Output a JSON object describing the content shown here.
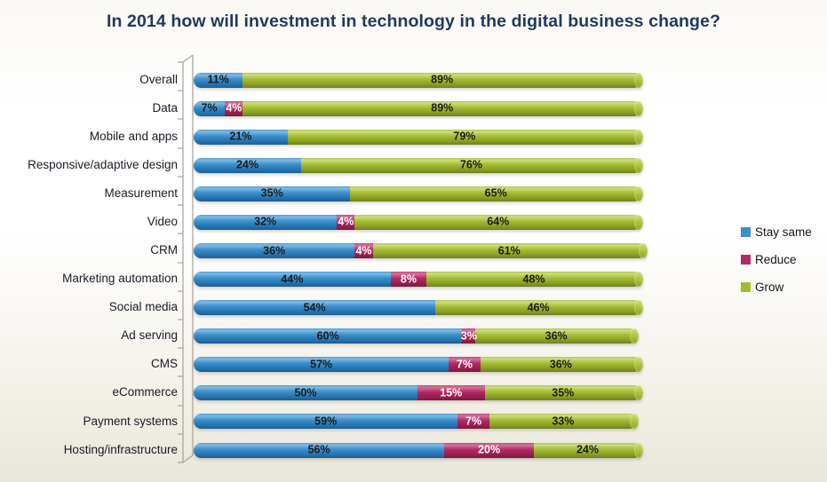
{
  "title": "In 2014 how will investment in technology in the digital business change?",
  "chart_data": {
    "type": "bar",
    "orientation": "horizontal",
    "stacked": true,
    "grid": false,
    "legend_position": "right",
    "xlim": [
      0,
      100
    ],
    "value_suffix": "%",
    "categories": [
      "Overall",
      "Data",
      "Mobile and apps",
      "Responsive/adaptive design",
      "Measurement",
      "Video",
      "CRM",
      "Marketing automation",
      "Social media",
      "Ad serving",
      "CMS",
      "eCommerce",
      "Payment systems",
      "Hosting/infrastructure"
    ],
    "series": [
      {
        "name": "Stay same",
        "color": "#3E8FCA",
        "values": [
          11,
          7,
          21,
          24,
          35,
          32,
          36,
          44,
          54,
          60,
          57,
          50,
          59,
          56
        ],
        "labels": [
          "11%",
          "7%",
          "21%",
          "24%",
          "35%",
          "32%",
          "36%",
          "44%",
          "54%",
          "60%",
          "57%",
          "50%",
          "59%",
          "56%"
        ]
      },
      {
        "name": "Reduce",
        "color": "#B22A62",
        "values": [
          0,
          4,
          0,
          0,
          0,
          4,
          4,
          8,
          0,
          3,
          7,
          15,
          7,
          20
        ],
        "labels": [
          "",
          "4%",
          "",
          "",
          "",
          "4%",
          "4%",
          "8%",
          "",
          "3%",
          "7%",
          "15%",
          "7%",
          "20%"
        ]
      },
      {
        "name": "Grow",
        "color": "#A2BC30",
        "values": [
          89,
          89,
          79,
          76,
          65,
          64,
          61,
          48,
          46,
          36,
          36,
          35,
          33,
          24
        ],
        "labels": [
          "89%",
          "89%",
          "79%",
          "76%",
          "65%",
          "64%",
          "61%",
          "48%",
          "46%",
          "36%",
          "36%",
          "35%",
          "33%",
          "24%"
        ]
      }
    ]
  },
  "legend": {
    "items": [
      {
        "label": "Stay same",
        "color": "#3E8FCA"
      },
      {
        "label": "Reduce",
        "color": "#B22A62"
      },
      {
        "label": "Grow",
        "color": "#A2BC30"
      }
    ]
  }
}
